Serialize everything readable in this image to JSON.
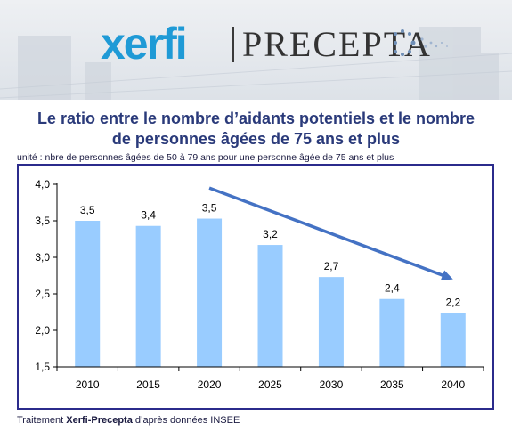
{
  "branding": {
    "logo_left": "xerfi",
    "logo_right": "PRECEPTA"
  },
  "chart_data": {
    "type": "bar",
    "title_line1": "Le ratio entre le nombre d’aidants potentiels et le nombre",
    "title_line2": "de personnes âgées de 75 ans et plus",
    "subtitle": "unité : nbre de personnes âgées de 50 à 79 ans pour une personne âgée de 75 ans et plus",
    "categories": [
      "2010",
      "2015",
      "2020",
      "2025",
      "2030",
      "2035",
      "2040"
    ],
    "values": [
      3.5,
      3.4,
      3.5,
      3.2,
      2.7,
      2.4,
      2.2
    ],
    "value_labels": [
      "3,5",
      "3,4",
      "3,5",
      "3,2",
      "2,7",
      "2,4",
      "2,2"
    ],
    "plotted_values": [
      3.5,
      3.43,
      3.53,
      3.17,
      2.73,
      2.43,
      2.24
    ],
    "ylim": [
      1.5,
      4.0
    ],
    "yticks": [
      1.5,
      2.0,
      2.5,
      3.0,
      3.5,
      4.0
    ],
    "ytick_labels": [
      "1,5",
      "2,0",
      "2,5",
      "3,0",
      "3,5",
      "4,0"
    ],
    "grid": false,
    "bar_color": "#99ccff",
    "trend_arrow": {
      "from": {
        "x": "2020",
        "y": 3.95
      },
      "to": {
        "x": "2040",
        "y": 2.7
      },
      "color": "#4472c4"
    }
  },
  "source": {
    "prefix": "Traitement ",
    "bold": "Xerfi-Precepta",
    "suffix": " d’après données INSEE"
  }
}
